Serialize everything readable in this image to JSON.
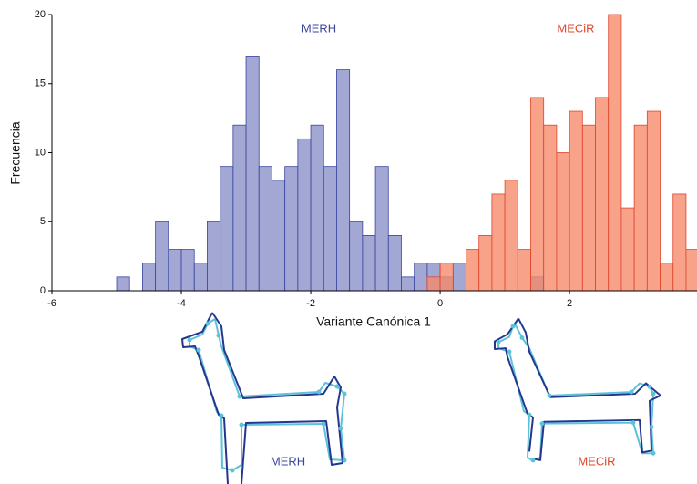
{
  "chart_data": {
    "type": "histogram",
    "xlabel": "Variante Canónica 1",
    "ylabel": "Frecuencia",
    "bins": [
      -5,
      -4.8,
      -4.6,
      -4.4,
      -4.2,
      -4,
      -3.8,
      -3.6,
      -3.4,
      -3.2,
      -3,
      -2.8,
      -2.6,
      -2.4,
      -2.2,
      -2,
      -1.8,
      -1.6,
      -1.4,
      -1.2,
      -1,
      -0.8,
      -0.6,
      -0.4,
      -0.2,
      0,
      0.2,
      0.4,
      0.6,
      0.8,
      1,
      1.2,
      1.4,
      1.6,
      1.8,
      2,
      2.2,
      2.4,
      2.6,
      2.8,
      3,
      3.2,
      3.4,
      3.6,
      3.8,
      4
    ],
    "series": [
      {
        "name": "MERH",
        "color": "#8b91c9",
        "edgecolor": "#3a45a0",
        "values": [
          1,
          0,
          2,
          5,
          3,
          3,
          2,
          5,
          9,
          12,
          17,
          9,
          8,
          9,
          11,
          12,
          9,
          16,
          5,
          4,
          9,
          4,
          1,
          2,
          2,
          1,
          2,
          0,
          0,
          0,
          0,
          0,
          1,
          0,
          0,
          0,
          0,
          0,
          0,
          0,
          0,
          0,
          0,
          0,
          0
        ]
      },
      {
        "name": "MECiR",
        "color": "#f58b6c",
        "edgecolor": "#e0452a",
        "values": [
          0,
          0,
          0,
          0,
          0,
          0,
          0,
          0,
          0,
          0,
          0,
          0,
          0,
          0,
          0,
          0,
          0,
          0,
          0,
          0,
          0,
          0,
          0,
          0,
          1,
          2,
          0,
          3,
          4,
          7,
          8,
          3,
          14,
          12,
          10,
          13,
          12,
          14,
          20,
          6,
          12,
          13,
          2,
          7,
          3
        ]
      }
    ],
    "xlim": [
      -6,
      3.97
    ],
    "xticks": [
      -6,
      -4,
      -2,
      0,
      2
    ],
    "ylim": [
      0,
      20
    ],
    "yticks": [
      0,
      5,
      10,
      15,
      20
    ],
    "figures": [
      {
        "label": "MERH"
      },
      {
        "label": "MECiR"
      }
    ]
  }
}
